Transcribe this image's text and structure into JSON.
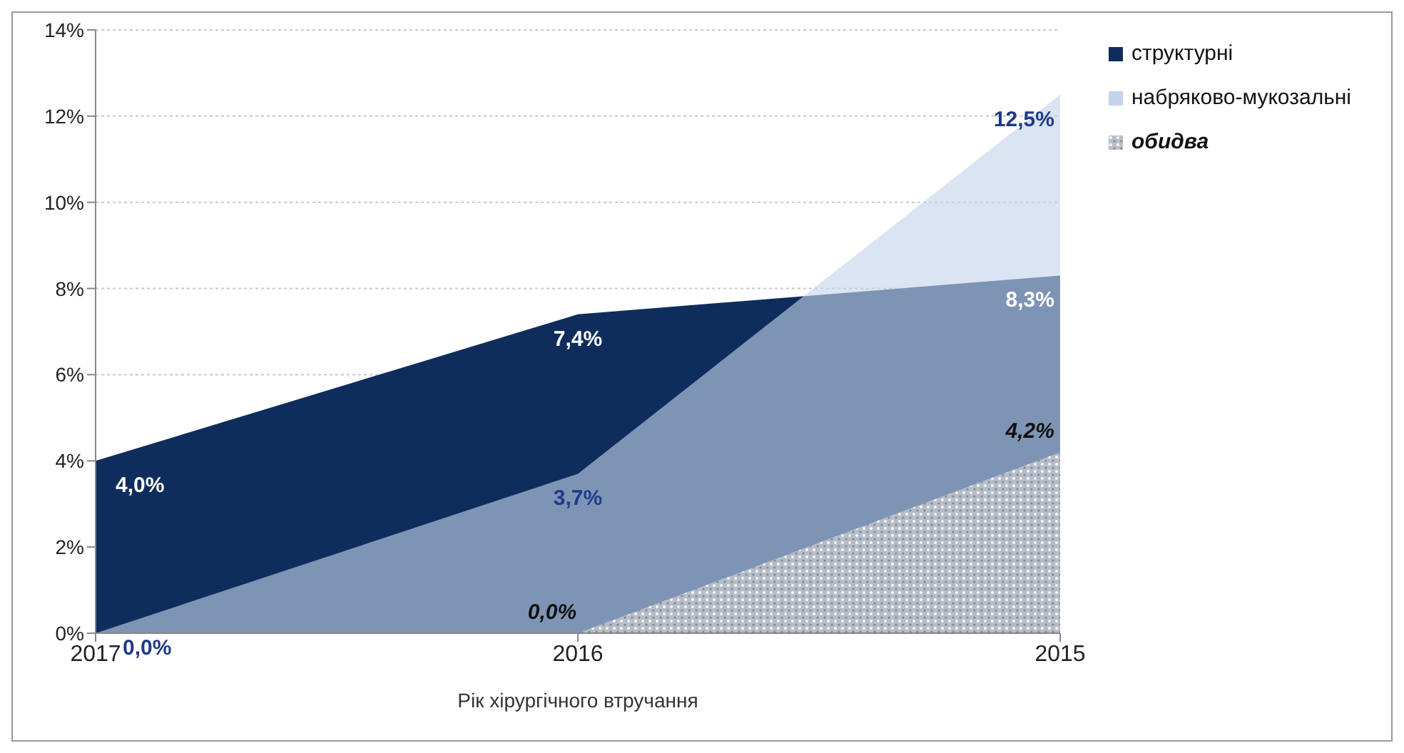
{
  "chart_data": {
    "type": "area",
    "xlabel": "Рік хірургічного втручання",
    "categories": [
      "2017",
      "2016",
      "2015"
    ],
    "series": [
      {
        "name": "структурні",
        "color": "#0f2d5c",
        "values": [
          4.0,
          7.4,
          8.3
        ],
        "value_labels": [
          "4,0%",
          "7,4%",
          "8,3%"
        ]
      },
      {
        "name": "набряково-мукозальні",
        "color": "#c3d4ea",
        "values": [
          0.0,
          3.7,
          12.5
        ],
        "value_labels": [
          "0,0%",
          "3,7%",
          "12,5%"
        ]
      },
      {
        "name": "обидва",
        "color": "#b9bfc9",
        "values": [
          null,
          0.0,
          4.2
        ],
        "value_labels": [
          null,
          "0,0%",
          "4,2%"
        ]
      }
    ],
    "ylim": [
      0,
      14
    ],
    "yticks": [
      {
        "value": 0,
        "label": "0%"
      },
      {
        "value": 2,
        "label": "2%"
      },
      {
        "value": 4,
        "label": "4%"
      },
      {
        "value": 6,
        "label": "6%"
      },
      {
        "value": 8,
        "label": "8%"
      },
      {
        "value": 10,
        "label": "10%"
      },
      {
        "value": 12,
        "label": "12%"
      },
      {
        "value": 14,
        "label": "14%"
      }
    ],
    "grid": "y",
    "legend": "right"
  }
}
